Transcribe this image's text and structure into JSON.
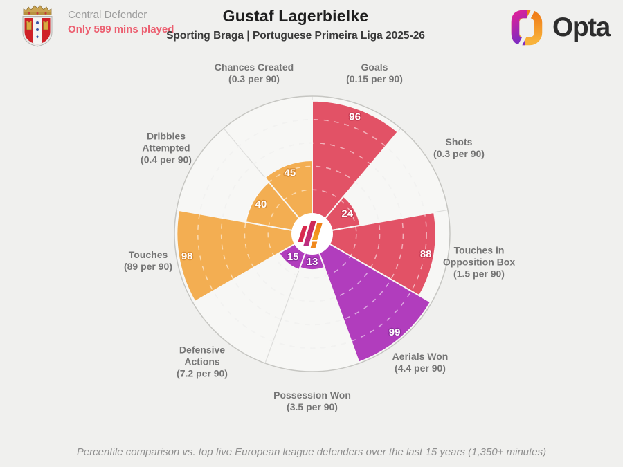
{
  "page": {
    "background": "#f0f0ee"
  },
  "header": {
    "badge": "sporting-braga-crest",
    "position": "Central Defender",
    "minutes_note": "Only 599 mins played",
    "minutes_note_color": "#ec5f70",
    "player_name": "Gustaf Lagerbielke",
    "subtitle": "Sporting Braga | Portuguese Primeira Liga 2025-26",
    "brand_name": "Opta"
  },
  "footer": {
    "caption": "Percentile comparison vs. top five European league defenders over the last 15 years (1,350+ minutes)"
  },
  "chart_data": {
    "type": "bar",
    "variant": "polar-pizza-percentile-chart",
    "direction": "clockwise-from-top",
    "scale": {
      "min": 0,
      "max": 100,
      "gridlines": [
        20,
        40,
        60,
        80
      ],
      "grid_style": "dashed"
    },
    "colors": {
      "attacking": "#e25266",
      "defending": "#b13dbd",
      "possession": "#f3ae52"
    },
    "outline_colors": {
      "attacking": "#c63a52",
      "defending": "#8f2da0",
      "possession": "#db8d33"
    },
    "slices": [
      {
        "label": "Goals",
        "per90": "(0.15 per 90)",
        "value": 96,
        "group": "attacking"
      },
      {
        "label": "Shots",
        "per90": "(0.3 per 90)",
        "value": 24,
        "group": "attacking"
      },
      {
        "label": "Touches in Opposition Box",
        "per90": "(1.5 per 90)",
        "value": 88,
        "group": "attacking"
      },
      {
        "label": "Aerials Won",
        "per90": "(4.4 per 90)",
        "value": 99,
        "group": "defending"
      },
      {
        "label": "Possession Won",
        "per90": "(3.5 per 90)",
        "value": 13,
        "group": "defending"
      },
      {
        "label": "Defensive Actions",
        "per90": "(7.2 per 90)",
        "value": 15,
        "group": "defending"
      },
      {
        "label": "Touches",
        "per90": "(89 per 90)",
        "value": 98,
        "group": "possession"
      },
      {
        "label": "Dribbles Attempted",
        "per90": "(0.4 per 90)",
        "value": 40,
        "group": "possession"
      },
      {
        "label": "Chances Created",
        "per90": "(0.3 per 90)",
        "value": 45,
        "group": "possession"
      }
    ]
  }
}
